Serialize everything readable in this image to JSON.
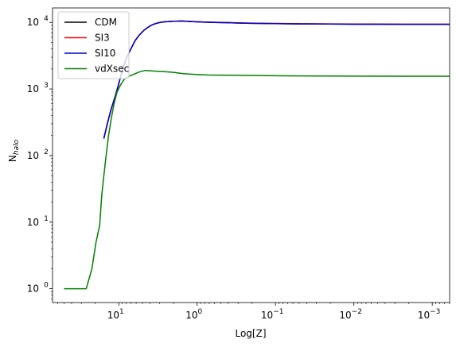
{
  "chart_data": {
    "type": "line",
    "xlabel": "Log[Z]",
    "ylabel": "N",
    "ylabel_sub": "halo",
    "xscale": "log",
    "xaxis_inverted": true,
    "yscale": "log",
    "xlim": [
      70,
      0.0006
    ],
    "ylim": [
      0.62,
      16500
    ],
    "grid": false,
    "legend_position": "top-left",
    "x_ticks": [
      {
        "value": 10,
        "base": "10",
        "exp": "1"
      },
      {
        "value": 1,
        "base": "10",
        "exp": "0"
      },
      {
        "value": 0.1,
        "base": "10",
        "exp": "−1"
      },
      {
        "value": 0.01,
        "base": "10",
        "exp": "−2"
      },
      {
        "value": 0.001,
        "base": "10",
        "exp": "−3"
      }
    ],
    "y_ticks": [
      {
        "value": 1,
        "base": "10",
        "exp": "0"
      },
      {
        "value": 10,
        "base": "10",
        "exp": "1"
      },
      {
        "value": 100,
        "base": "10",
        "exp": "2"
      },
      {
        "value": 1000,
        "base": "10",
        "exp": "3"
      },
      {
        "value": 10000,
        "base": "10",
        "exp": "4"
      }
    ],
    "series": [
      {
        "name": "CDM",
        "color": "#000000",
        "x": [
          15.5,
          14,
          12.5,
          11,
          10,
          9,
          8,
          7,
          6.2,
          5.5,
          4.9,
          4.4,
          3.9,
          3.4,
          3.0,
          2.6,
          2.3,
          2.0,
          1.8,
          1.6,
          1.4,
          1.2,
          1.0,
          0.8,
          0.6,
          0.4,
          0.3,
          0.2,
          0.15,
          0.1,
          0.05,
          0.02,
          0.01,
          0.005,
          0.002,
          0.001,
          0.0006
        ],
        "y": [
          180,
          300,
          500,
          800,
          1200,
          1900,
          2900,
          4000,
          5300,
          6400,
          7400,
          8200,
          9000,
          9600,
          10000,
          10200,
          10300,
          10400,
          10400,
          10500,
          10400,
          10300,
          10200,
          10100,
          10000,
          9900,
          9800,
          9700,
          9650,
          9600,
          9500,
          9450,
          9400,
          9380,
          9360,
          9350,
          9350
        ]
      },
      {
        "name": "SI3",
        "color": "#ff0000",
        "x": [
          15.5,
          14,
          12.5,
          11,
          10,
          9,
          8,
          7,
          6.2,
          5.5,
          4.9,
          4.4,
          3.9,
          3.4,
          3.0,
          2.6,
          2.3,
          2.0,
          1.8,
          1.6,
          1.4,
          1.2,
          1.0,
          0.8,
          0.6,
          0.4,
          0.3,
          0.2,
          0.15,
          0.1,
          0.05,
          0.02,
          0.01,
          0.005,
          0.002,
          0.001,
          0.0006
        ],
        "y": [
          180,
          300,
          500,
          800,
          1200,
          1900,
          2900,
          4000,
          5300,
          6400,
          7400,
          8200,
          9000,
          9600,
          10000,
          10200,
          10300,
          10400,
          10450,
          10550,
          10450,
          10350,
          10250,
          10150,
          10050,
          9950,
          9850,
          9750,
          9700,
          9650,
          9550,
          9500,
          9450,
          9430,
          9410,
          9400,
          9400
        ]
      },
      {
        "name": "SI10",
        "color": "#0000cc",
        "x": [
          15.5,
          14,
          12.5,
          11,
          10,
          9,
          8,
          7,
          6.2,
          5.5,
          4.9,
          4.4,
          3.9,
          3.4,
          3.0,
          2.6,
          2.3,
          2.0,
          1.8,
          1.6,
          1.4,
          1.2,
          1.0,
          0.8,
          0.6,
          0.4,
          0.3,
          0.2,
          0.15,
          0.1,
          0.05,
          0.02,
          0.01,
          0.005,
          0.002,
          0.001,
          0.0006
        ],
        "y": [
          180,
          300,
          500,
          800,
          1200,
          1900,
          2900,
          4000,
          5300,
          6400,
          7400,
          8200,
          9000,
          9600,
          10000,
          10200,
          10300,
          10400,
          10450,
          10500,
          10400,
          10300,
          10200,
          10100,
          10000,
          9900,
          9800,
          9700,
          9650,
          9600,
          9500,
          9450,
          9400,
          9380,
          9360,
          9350,
          9350
        ]
      },
      {
        "name": "vdXsec",
        "color": "#008000",
        "x": [
          50,
          40,
          26,
          22,
          19.5,
          17.5,
          16.5,
          15.5,
          14.5,
          13.5,
          12.5,
          11.5,
          10.5,
          9.5,
          8.5,
          7.5,
          6.5,
          5.5,
          4.6,
          4.0,
          3.4,
          2.6,
          2.0,
          1.5,
          1.0,
          0.7,
          0.4,
          0.2,
          0.1,
          0.05,
          0.02,
          0.01,
          0.001,
          0.0006
        ],
        "y": [
          1,
          1,
          1,
          2,
          5,
          9,
          25,
          50,
          100,
          200,
          350,
          600,
          900,
          1150,
          1400,
          1550,
          1650,
          1800,
          1900,
          1880,
          1850,
          1820,
          1780,
          1700,
          1650,
          1620,
          1610,
          1600,
          1580,
          1570,
          1565,
          1560,
          1555,
          1555
        ]
      }
    ]
  }
}
